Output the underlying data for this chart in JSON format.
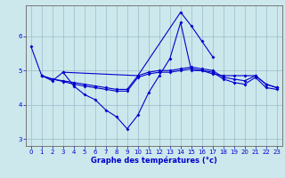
{
  "xlabel": "Graphe des températures (°c)",
  "xlim": [
    -0.5,
    23.5
  ],
  "ylim": [
    2.8,
    6.9
  ],
  "yticks": [
    3,
    4,
    5,
    6
  ],
  "xticks": [
    0,
    1,
    2,
    3,
    4,
    5,
    6,
    7,
    8,
    9,
    10,
    11,
    12,
    13,
    14,
    15,
    16,
    17,
    18,
    19,
    20,
    21,
    22,
    23
  ],
  "background_color": "#cce8ec",
  "line_color": "#0000cc",
  "grid_color": "#99bbcc",
  "series": [
    {
      "x": [
        0,
        1,
        2,
        3,
        4,
        5,
        6,
        7,
        8,
        9,
        10,
        11,
        12,
        13,
        14,
        15,
        16,
        17,
        18,
        19,
        20,
        21,
        22,
        23
      ],
      "y": [
        5.7,
        4.85,
        4.7,
        4.95,
        4.55,
        4.3,
        4.15,
        3.85,
        3.65,
        3.3,
        3.7,
        4.35,
        4.85,
        5.35,
        6.4,
        5.0,
        5.0,
        4.9,
        4.85,
        4.85,
        4.85,
        4.85,
        4.6,
        4.5
      ]
    },
    {
      "x": [
        3,
        10,
        14,
        15,
        16,
        17
      ],
      "y": [
        4.95,
        4.85,
        6.7,
        6.3,
        5.85,
        5.4
      ]
    },
    {
      "x": [
        1,
        2,
        3,
        4,
        5,
        6,
        7,
        8,
        9,
        10,
        11,
        12,
        13,
        14,
        15,
        16,
        17,
        18,
        19,
        20,
        21,
        22,
        23
      ],
      "y": [
        4.85,
        4.75,
        4.7,
        4.65,
        4.6,
        4.55,
        4.5,
        4.45,
        4.45,
        4.85,
        4.95,
        5.0,
        5.0,
        5.05,
        5.1,
        5.05,
        5.0,
        4.8,
        4.75,
        4.7,
        4.85,
        4.6,
        4.5
      ]
    },
    {
      "x": [
        1,
        2,
        3,
        4,
        5,
        6,
        7,
        8,
        9,
        10,
        11,
        12,
        13,
        14,
        15,
        16,
        17,
        18,
        19,
        20,
        21,
        22,
        23
      ],
      "y": [
        4.85,
        4.75,
        4.68,
        4.6,
        4.55,
        4.5,
        4.45,
        4.4,
        4.4,
        4.8,
        4.9,
        4.95,
        4.95,
        5.0,
        5.05,
        5.0,
        4.95,
        4.75,
        4.65,
        4.6,
        4.8,
        4.5,
        4.45
      ]
    }
  ]
}
